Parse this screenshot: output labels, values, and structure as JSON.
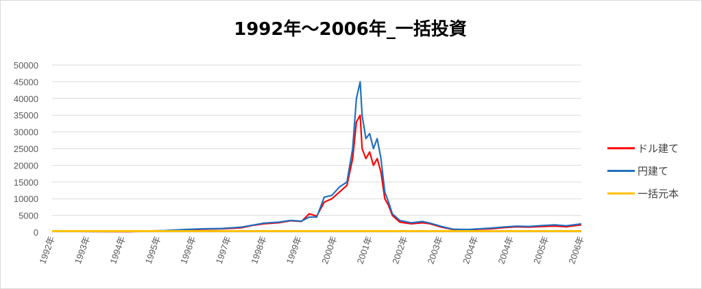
{
  "chart_data": {
    "type": "line",
    "title": "1992年～2006年_一括投資",
    "xlabel": "",
    "ylabel": "",
    "ylim": [
      0,
      50000
    ],
    "yticks": [
      0,
      5000,
      10000,
      15000,
      20000,
      25000,
      30000,
      35000,
      40000,
      45000,
      50000
    ],
    "xtick_labels": [
      "1992年",
      "1993年",
      "1994年",
      "1995年",
      "1996年",
      "1997年",
      "1998年",
      "1999年",
      "2000年",
      "2001年",
      "2002年",
      "2003年",
      "2004年",
      "2004年",
      "2005年",
      "2006年"
    ],
    "x": [
      1992.0,
      1993.0,
      1994.0,
      1995.0,
      1995.5,
      1996.0,
      1996.5,
      1997.0,
      1997.3,
      1997.6,
      1998.0,
      1998.3,
      1998.6,
      1998.8,
      1999.0,
      1999.2,
      1999.4,
      1999.6,
      1999.8,
      1999.95,
      2000.05,
      2000.15,
      2000.2,
      2000.3,
      2000.4,
      2000.5,
      2000.6,
      2000.7,
      2000.8,
      2000.9,
      2001.0,
      2001.2,
      2001.5,
      2001.8,
      2002.0,
      2002.3,
      2002.6,
      2003.0,
      2003.3,
      2003.6,
      2004.0,
      2004.3,
      2004.6,
      2005.0,
      2005.3,
      2005.6,
      2006.0
    ],
    "grid": true,
    "legend_position": "right",
    "series": [
      {
        "name": "ドル建て",
        "color": "#ff0000",
        "values": [
          300,
          200,
          150,
          400,
          700,
          900,
          1000,
          1300,
          2000,
          2500,
          2800,
          3400,
          3200,
          5500,
          4800,
          9000,
          10000,
          12000,
          14000,
          22000,
          33000,
          35000,
          25000,
          22000,
          24000,
          20000,
          22000,
          18000,
          10000,
          8000,
          5000,
          3000,
          2500,
          2800,
          2500,
          1500,
          800,
          700,
          900,
          1000,
          1400,
          1600,
          1500,
          1700,
          1800,
          1600,
          2200
        ]
      },
      {
        "name": "円建て",
        "color": "#1f6fbf",
        "values": [
          300,
          200,
          200,
          500,
          800,
          1000,
          1100,
          1500,
          2100,
          2700,
          3000,
          3500,
          3300,
          4500,
          4500,
          10500,
          11000,
          13500,
          15000,
          25000,
          40000,
          45000,
          35000,
          28000,
          29500,
          25000,
          28000,
          22000,
          12000,
          9000,
          5500,
          3500,
          2800,
          3200,
          2700,
          1700,
          900,
          800,
          1000,
          1200,
          1600,
          1800,
          1700,
          2000,
          2200,
          1900,
          2500
        ]
      },
      {
        "name": "一括元本",
        "color": "#ffc000",
        "values": [
          300,
          300,
          300,
          300,
          300,
          300,
          300,
          300,
          300,
          300,
          300,
          300,
          300,
          300,
          300,
          300,
          300,
          300,
          300,
          300,
          300,
          300,
          300,
          300,
          300,
          300,
          300,
          300,
          300,
          300,
          300,
          300,
          300,
          300,
          300,
          300,
          300,
          300,
          300,
          300,
          300,
          300,
          300,
          300,
          300,
          300,
          300
        ]
      }
    ]
  }
}
